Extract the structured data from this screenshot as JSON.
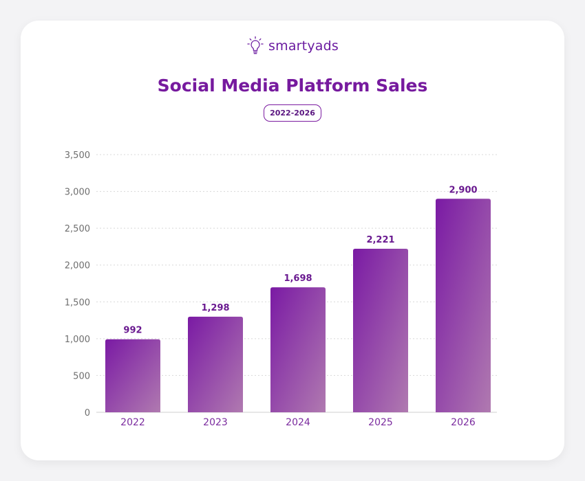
{
  "brand": {
    "name": "smartyads",
    "logo_icon": "lightbulb-icon",
    "color": "#6a1aa0"
  },
  "colors": {
    "title": "#761a9e",
    "bar_gradient_start": "#7a1aa4",
    "bar_gradient_end": "#b07ab0",
    "grid": "#d8d8d8"
  },
  "chart_data": {
    "type": "bar",
    "title": "Social Media Platform Sales",
    "subtitle": "2022-2026",
    "categories": [
      "2022",
      "2023",
      "2024",
      "2025",
      "2026"
    ],
    "values": [
      992,
      1298,
      1698,
      2221,
      2900
    ],
    "value_labels": [
      "992",
      "1,298",
      "1,698",
      "2,221",
      "2,900"
    ],
    "y_ticks": [
      0,
      500,
      1000,
      1500,
      2000,
      2500,
      3000,
      3500
    ],
    "y_tick_labels": [
      "0",
      "500",
      "1,000",
      "1,500",
      "2,000",
      "2,500",
      "3,000",
      "3,500"
    ],
    "ylim": [
      0,
      3500
    ],
    "grid": true,
    "legend": "none",
    "xlabel": "",
    "ylabel": ""
  }
}
